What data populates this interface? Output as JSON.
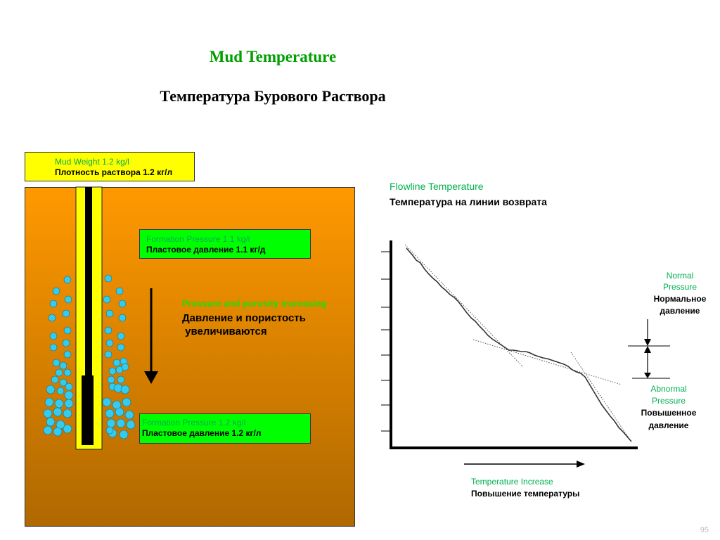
{
  "title_en": "Mud Temperature",
  "title_ru": "Температура Бурового Раствора",
  "mud_weight": {
    "en": "Mud Weight 1.2 kg/l",
    "ru": "Плотность  раствора 1.2 кг/л"
  },
  "formation_pressure_top": {
    "en": "Formation Pressure 1.1 kg/l",
    "ru": "Пластовое давление 1.1 кг/д"
  },
  "formation_pressure_bottom": {
    "en": "Formation Pressure 1.2 kg/l",
    "ru": "Пластовое давление 1.2 кг/л"
  },
  "pressure_porosity": {
    "en": "Pressure and porosity increasing",
    "ru_line1": "Давление и пористость",
    "ru_line2": " увеличиваются"
  },
  "flowline": {
    "en": "Flowline  Temperature",
    "ru": "Температура  на линии  возврата"
  },
  "normal_pressure": {
    "en_line1": "Normal",
    "en_line2": "Pressure",
    "ru_line1": "Нормальное",
    "ru_line2": "давление"
  },
  "abnormal_pressure": {
    "en_line1": "Abnormal",
    "en_line2": "Pressure",
    "ru_line1": "Повышенное",
    "ru_line2": "давление"
  },
  "temperature_increase": {
    "en": "Temperature  Increase",
    "ru": "Повышение температуры"
  },
  "page_number": "95",
  "colors": {
    "formation_top": "#ff9900",
    "formation_bottom": "#b06800",
    "label_green": "#00b050",
    "box_green": "#00ff00",
    "box_yellow": "#ffff00",
    "bubble": "#33ccee"
  },
  "icons": [
    "down-arrow-icon",
    "right-arrow-icon",
    "double-arrow-icon"
  ]
}
